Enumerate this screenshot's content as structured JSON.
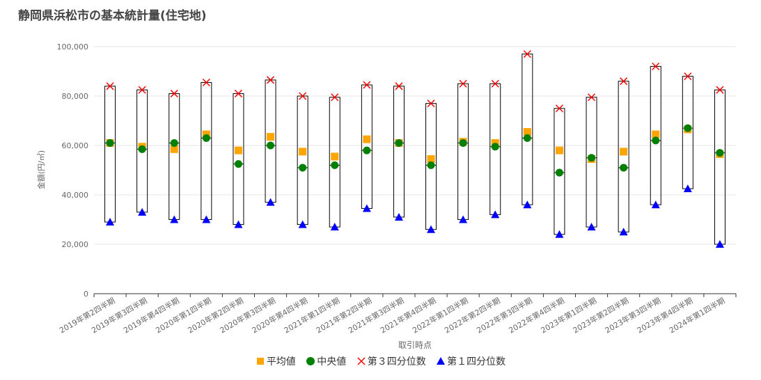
{
  "title": "静岡県浜松市の基本統計量(住宅地)",
  "colors": {
    "mean": "#FFA500",
    "median": "#008000",
    "q3": "#FF0000",
    "q1": "#0000FF",
    "box": "#000000",
    "grid": "#e6e6e6",
    "axis_text": "#666666"
  },
  "chart_data": {
    "type": "box",
    "xlabel": "取引時点",
    "ylabel": "金額(円/㎡)",
    "ylim": [
      0,
      100000
    ],
    "y_ticks": [
      0,
      20000,
      40000,
      60000,
      80000,
      100000
    ],
    "y_tick_labels": [
      "0",
      "20,000",
      "40,000",
      "60,000",
      "80,000",
      "100,000"
    ],
    "grid": true,
    "legend_position": "bottom",
    "categories": [
      "2019年第2四半期",
      "2019年第3四半期",
      "2019年第4四半期",
      "2020年第1四半期",
      "2020年第2四半期",
      "2020年第3四半期",
      "2020年第4四半期",
      "2021年第1四半期",
      "2021年第2四半期",
      "2021年第3四半期",
      "2021年第4四半期",
      "2022年第1四半期",
      "2022年第2四半期",
      "2022年第3四半期",
      "2022年第4四半期",
      "2023年第1四半期",
      "2023年第2四半期",
      "2023年第3四半期",
      "2023年第4四半期",
      "2024年第1四半期"
    ],
    "series": [
      {
        "key": "mean",
        "name": "平均値",
        "marker": "square",
        "values": [
          61000,
          59500,
          58500,
          64500,
          58000,
          63500,
          57500,
          55500,
          62500,
          61000,
          54500,
          61500,
          61000,
          65500,
          58000,
          54500,
          57500,
          64500,
          66500,
          56500
        ]
      },
      {
        "key": "median",
        "name": "中央値",
        "marker": "circle",
        "values": [
          61000,
          58500,
          61000,
          63000,
          52500,
          60000,
          51000,
          52000,
          58000,
          61000,
          52000,
          61000,
          59500,
          63000,
          49000,
          55000,
          51000,
          62000,
          67000,
          57000
        ]
      },
      {
        "key": "q3",
        "name": "第３四分位数",
        "marker": "cross",
        "values": [
          84000,
          82500,
          81000,
          85500,
          81000,
          86500,
          80000,
          79500,
          84500,
          84000,
          77000,
          85000,
          85000,
          97000,
          75000,
          79500,
          86000,
          92000,
          88000,
          82500
        ]
      },
      {
        "key": "q1",
        "name": "第１四分位数",
        "marker": "triangle",
        "values": [
          29000,
          33000,
          30000,
          30000,
          28000,
          37000,
          28000,
          27000,
          34500,
          31000,
          26000,
          30000,
          32000,
          36000,
          24000,
          27000,
          25000,
          36000,
          42500,
          20000
        ]
      }
    ]
  }
}
